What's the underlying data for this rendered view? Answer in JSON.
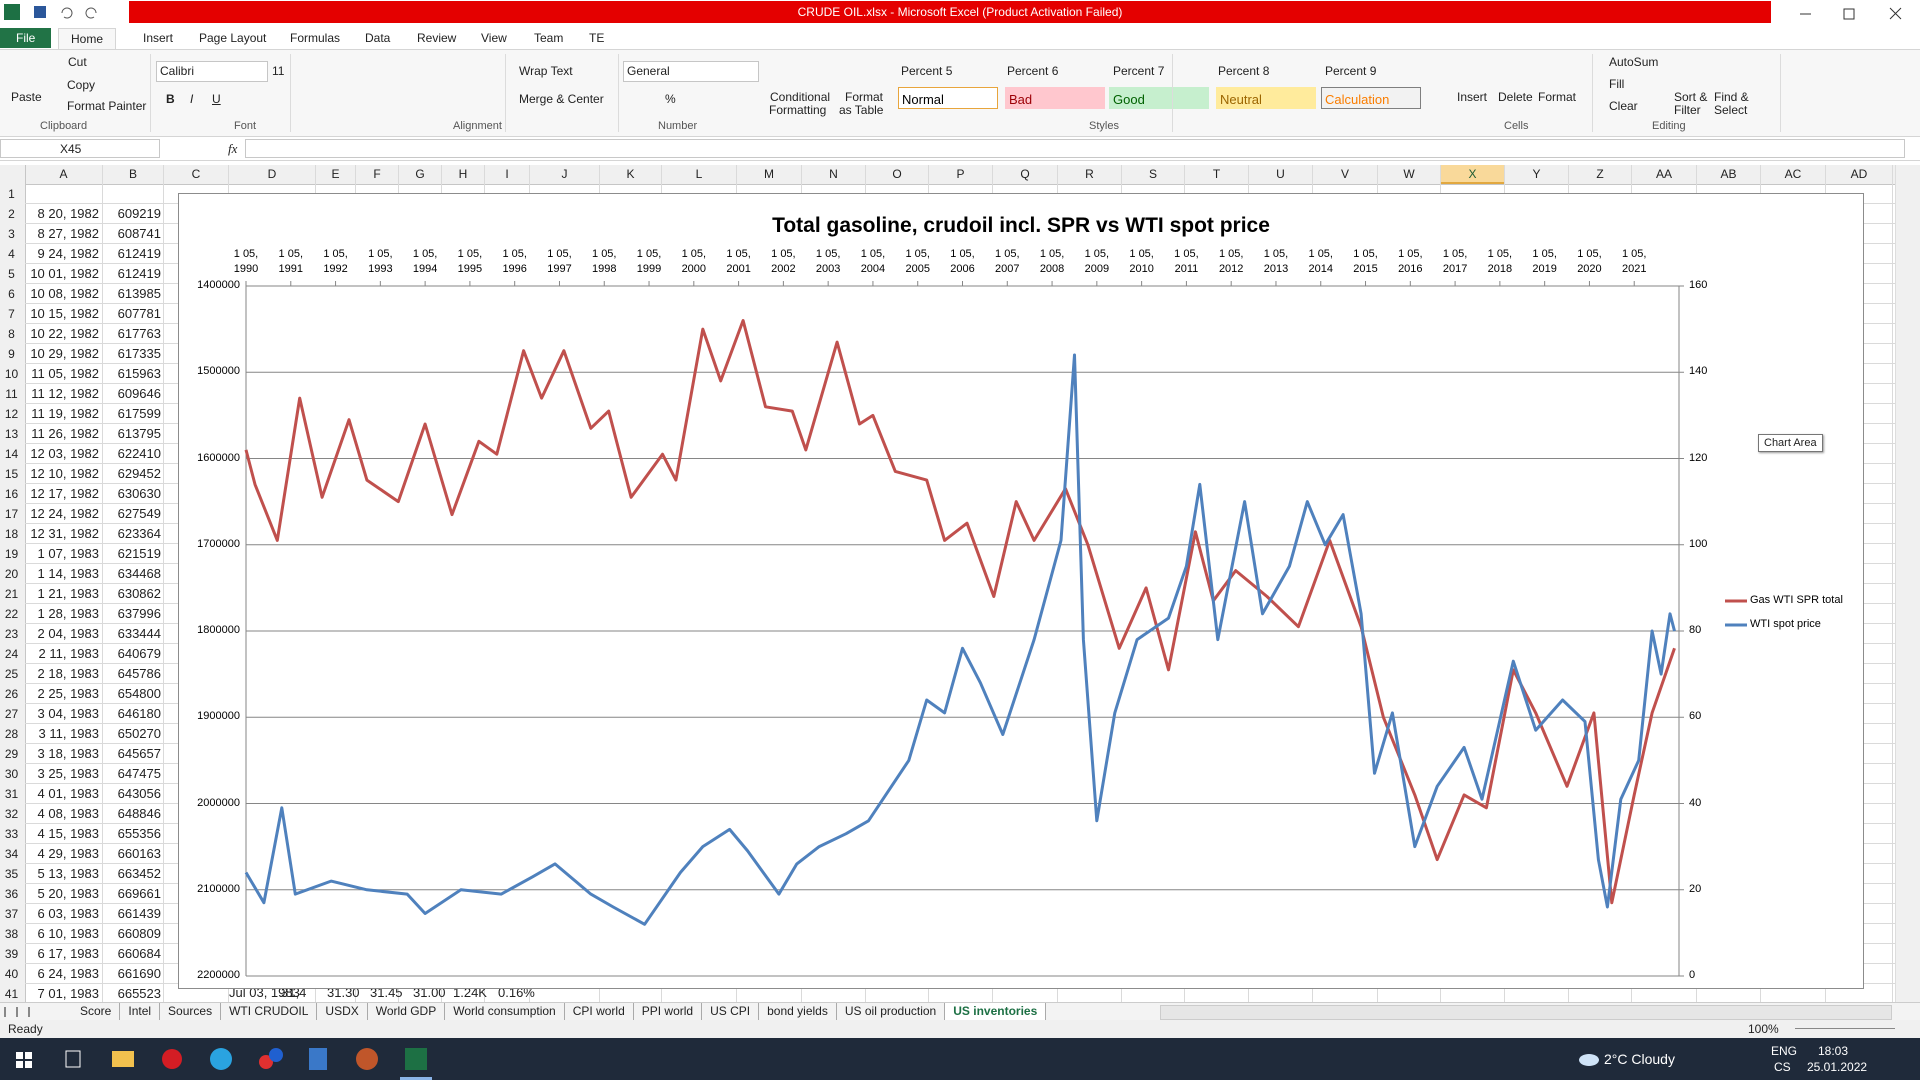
{
  "window": {
    "title": "CRUDE OIL.xlsx  -  Microsoft Excel (Product Activation Failed)",
    "tabs": [
      "File",
      "Home",
      "Insert",
      "Page Layout",
      "Formulas",
      "Data",
      "Review",
      "View",
      "Team",
      "TE"
    ]
  },
  "ribbon": {
    "items": [
      "Paste",
      "Cut",
      "Copy",
      "Format Painter",
      "Clipboard",
      "Calibri",
      "11",
      "B",
      "I",
      "U",
      "Font",
      "Wrap Text",
      "Merge & Center",
      "Alignment",
      "General",
      "%",
      "Number",
      "Conditional",
      "Formatting",
      "Format",
      "as Table",
      "Percent 5",
      "Percent 6",
      "Percent 7",
      "Percent 8",
      "Percent 9",
      "Normal",
      "Bad",
      "Good",
      "Neutral",
      "Calculation",
      "Styles",
      "Insert",
      "Delete",
      "Format",
      "Cells",
      "AutoSum",
      "Fill",
      "Clear",
      "Sort &",
      "Filter",
      "Find &",
      "Select",
      "Editing"
    ]
  },
  "formula_bar": {
    "name_box": "X45",
    "fx": "fx"
  },
  "sheet": {
    "columns": [
      "A",
      "B",
      "C",
      "D",
      "E",
      "F",
      "G",
      "H",
      "I",
      "J",
      "K",
      "L",
      "M",
      "N",
      "O",
      "P",
      "Q",
      "R",
      "S",
      "T",
      "U",
      "V",
      "W",
      "X",
      "Y",
      "Z",
      "AA",
      "AB",
      "AC",
      "AD"
    ],
    "selected_column": "X",
    "row_numbers": [
      1,
      2,
      3,
      4,
      5,
      6,
      7,
      8,
      9,
      10,
      11,
      12,
      13,
      14,
      15,
      16,
      17,
      18,
      19,
      20,
      21,
      22,
      23,
      24,
      25,
      26,
      27,
      28,
      29,
      30,
      31,
      32,
      33,
      34,
      35,
      36,
      37,
      38,
      39,
      40,
      41
    ],
    "cells": [
      [
        "8 20, 1982",
        609219
      ],
      [
        "8 27, 1982",
        608741
      ],
      [
        "9 24, 1982",
        612419
      ],
      [
        "10 01, 1982",
        612419
      ],
      [
        "10 08, 1982",
        613985
      ],
      [
        "10 15, 1982",
        607781
      ],
      [
        "10 22, 1982",
        617763
      ],
      [
        "10 29, 1982",
        617335
      ],
      [
        "11 05, 1982",
        615963
      ],
      [
        "11 12, 1982",
        609646
      ],
      [
        "11 19, 1982",
        617599
      ],
      [
        "11 26, 1982",
        613795
      ],
      [
        "12 03, 1982",
        622410
      ],
      [
        "12 10, 1982",
        629452
      ],
      [
        "12 17, 1982",
        630630
      ],
      [
        "12 24, 1982",
        627549
      ],
      [
        "12 31, 1982",
        623364
      ],
      [
        "1 07, 1983",
        621519
      ],
      [
        "1 14, 1983",
        634468
      ],
      [
        "1 21, 1983",
        630862
      ],
      [
        "1 28, 1983",
        637996
      ],
      [
        "2 04, 1983",
        633444
      ],
      [
        "2 11, 1983",
        640679
      ],
      [
        "2 18, 1983",
        645786
      ],
      [
        "2 25, 1983",
        654800
      ],
      [
        "3 04, 1983",
        646180
      ],
      [
        "3 11, 1983",
        650270
      ],
      [
        "3 18, 1983",
        645657
      ],
      [
        "3 25, 1983",
        647475
      ],
      [
        "4 01, 1983",
        643056
      ],
      [
        "4 08, 1983",
        648846
      ],
      [
        "4 15, 1983",
        655356
      ],
      [
        "4 29, 1983",
        660163
      ],
      [
        "5 13, 1983",
        663452
      ],
      [
        "5 20, 1983",
        669661
      ],
      [
        "6 03, 1983",
        661439
      ],
      [
        "6 10, 1983",
        660809
      ],
      [
        "6 17, 1983",
        660684
      ],
      [
        "6 24, 1983",
        661690
      ],
      [
        "7 01, 1983",
        665523
      ]
    ],
    "row41_extra": [
      "Jul 03, 1983",
      "31,4",
      "31.30",
      "31.45",
      "31.00",
      "1.24K",
      "0.16%"
    ]
  },
  "sheet_tabs": [
    {
      "name": "Score"
    },
    {
      "name": "Intel"
    },
    {
      "name": "Sources"
    },
    {
      "name": "WTI CRUDOIL"
    },
    {
      "name": "USDX"
    },
    {
      "name": "World GDP"
    },
    {
      "name": "World consumption"
    },
    {
      "name": "CPI world"
    },
    {
      "name": "PPI world"
    },
    {
      "name": "US CPI"
    },
    {
      "name": "bond yields"
    },
    {
      "name": "US oil production"
    },
    {
      "name": "US inventories",
      "active": true
    }
  ],
  "status": {
    "left": "Ready",
    "zoom": "100%"
  },
  "taskbar": {
    "weather": "2°C  Cloudy",
    "lang": [
      "ENG",
      "CS"
    ],
    "time": "18:03",
    "date": "25.01.2022"
  },
  "chart_data": {
    "type": "line",
    "title": "Total gasoline, crudoil incl. SPR vs WTI spot price",
    "annotations": [
      "Chart Area"
    ],
    "xlim": [
      1990,
      2022
    ],
    "xticks": [
      {
        "value": 1990,
        "label": "1 05, 1990"
      },
      {
        "value": 1991,
        "label": "1 05, 1991"
      },
      {
        "value": 1992,
        "label": "1 05, 1992"
      },
      {
        "value": 1993,
        "label": "1 05, 1993"
      },
      {
        "value": 1994,
        "label": "1 05, 1994"
      },
      {
        "value": 1995,
        "label": "1 05, 1995"
      },
      {
        "value": 1996,
        "label": "1 05, 1996"
      },
      {
        "value": 1997,
        "label": "1 05, 1997"
      },
      {
        "value": 1998,
        "label": "1 05, 1998"
      },
      {
        "value": 1999,
        "label": "1 05, 1999"
      },
      {
        "value": 2000,
        "label": "1 05, 2000"
      },
      {
        "value": 2001,
        "label": "1 05, 2001"
      },
      {
        "value": 2002,
        "label": "1 05, 2002"
      },
      {
        "value": 2003,
        "label": "1 05, 2003"
      },
      {
        "value": 2004,
        "label": "1 05, 2004"
      },
      {
        "value": 2005,
        "label": "1 05, 2005"
      },
      {
        "value": 2006,
        "label": "1 05, 2006"
      },
      {
        "value": 2007,
        "label": "1 05, 2007"
      },
      {
        "value": 2008,
        "label": "1 05, 2008"
      },
      {
        "value": 2009,
        "label": "1 05, 2009"
      },
      {
        "value": 2010,
        "label": "1 05, 2010"
      },
      {
        "value": 2011,
        "label": "1 05, 2011"
      },
      {
        "value": 2012,
        "label": "1 05, 2012"
      },
      {
        "value": 2013,
        "label": "1 05, 2013"
      },
      {
        "value": 2014,
        "label": "1 05, 2014"
      },
      {
        "value": 2015,
        "label": "1 05, 2015"
      },
      {
        "value": 2016,
        "label": "1 05, 2016"
      },
      {
        "value": 2017,
        "label": "1 05, 2017"
      },
      {
        "value": 2018,
        "label": "1 05, 2018"
      },
      {
        "value": 2019,
        "label": "1 05, 2019"
      },
      {
        "value": 2020,
        "label": "1 05, 2020"
      },
      {
        "value": 2021,
        "label": "1 05, 2021"
      }
    ],
    "ylim": [
      1400000,
      2200000
    ],
    "yreverse": true,
    "yticks": [
      1400000,
      1500000,
      1600000,
      1700000,
      1800000,
      1900000,
      2000000,
      2100000,
      2200000
    ],
    "y2lim": [
      0,
      160
    ],
    "y2ticks": [
      0,
      20,
      40,
      60,
      80,
      100,
      120,
      140,
      160
    ],
    "grid": true,
    "legend": "right",
    "series": [
      {
        "name": "Gas WTI SPR total",
        "color": "#c0504d",
        "x": [
          1990,
          1990.2,
          1990.7,
          1991.2,
          1991.7,
          1992.3,
          1992.7,
          1993.4,
          1994,
          1994.6,
          1995.2,
          1995.6,
          1996.2,
          1996.6,
          1997.1,
          1997.7,
          1998.1,
          1998.6,
          1999.3,
          1999.6,
          2000.2,
          2000.6,
          2001.1,
          2001.6,
          2002.2,
          2002.5,
          2003.2,
          2003.7,
          2004,
          2004.5,
          2005.2,
          2005.6,
          2006.1,
          2006.7,
          2007.2,
          2007.6,
          2008.3,
          2008.8,
          2009.5,
          2010.1,
          2010.6,
          2011.2,
          2011.6,
          2012.1,
          2012.8,
          2013.5,
          2014.2,
          2014.9,
          2015.4,
          2016.1,
          2016.6,
          2017.2,
          2017.7,
          2018.3,
          2018.8,
          2019.5,
          2020.1,
          2020.5,
          2021,
          2021.4,
          2021.9
        ],
        "values": [
          1590000,
          1630000,
          1695000,
          1530000,
          1645000,
          1555000,
          1625000,
          1650000,
          1560000,
          1665000,
          1580000,
          1595000,
          1475000,
          1530000,
          1475000,
          1565000,
          1545000,
          1645000,
          1595000,
          1625000,
          1450000,
          1510000,
          1440000,
          1540000,
          1545000,
          1590000,
          1465000,
          1560000,
          1550000,
          1615000,
          1625000,
          1695000,
          1675000,
          1760000,
          1650000,
          1695000,
          1635000,
          1700000,
          1820000,
          1750000,
          1845000,
          1685000,
          1765000,
          1730000,
          1760000,
          1795000,
          1695000,
          1795000,
          1900000,
          1990000,
          2065000,
          1990000,
          2005000,
          1845000,
          1895000,
          1980000,
          1895000,
          2115000,
          1990000,
          1895000,
          1820000
        ]
      },
      {
        "name": "WTI spot price",
        "color": "#4f81bd",
        "axis": "y2",
        "x": [
          1990,
          1990.4,
          1990.8,
          1991.1,
          1991.9,
          1992.7,
          1993.6,
          1994,
          1994.8,
          1995.7,
          1996.4,
          1996.9,
          1997.7,
          1998.2,
          1998.9,
          1999.7,
          2000.2,
          2000.8,
          2001.2,
          2001.9,
          2002.3,
          2002.8,
          2003.4,
          2003.9,
          2004.8,
          2005.2,
          2005.6,
          2006,
          2006.4,
          2006.9,
          2007.6,
          2008.2,
          2008.5,
          2008.7,
          2009,
          2009.4,
          2009.9,
          2010.6,
          2011,
          2011.3,
          2011.7,
          2012.3,
          2012.7,
          2013.3,
          2013.7,
          2014.1,
          2014.5,
          2014.9,
          2015.2,
          2015.6,
          2016.1,
          2016.6,
          2017.2,
          2017.6,
          2018.3,
          2018.8,
          2019.4,
          2019.9,
          2020.2,
          2020.4,
          2020.7,
          2021.1,
          2021.4,
          2021.6,
          2021.8,
          2021.9
        ],
        "values": [
          24,
          17,
          39,
          19,
          22,
          20,
          19,
          14.5,
          20,
          19,
          23,
          26,
          19,
          16,
          12,
          24,
          30,
          34,
          29,
          19,
          26,
          30,
          33,
          36,
          50,
          64,
          61,
          76,
          68,
          56,
          78,
          101,
          144,
          78,
          36,
          61,
          78,
          83,
          95,
          114,
          78,
          110,
          84,
          95,
          110,
          100,
          107,
          84,
          47,
          61,
          30,
          44,
          53,
          41,
          73,
          57,
          64,
          59,
          27,
          16,
          41,
          50,
          80,
          70,
          84,
          80
        ]
      }
    ]
  }
}
